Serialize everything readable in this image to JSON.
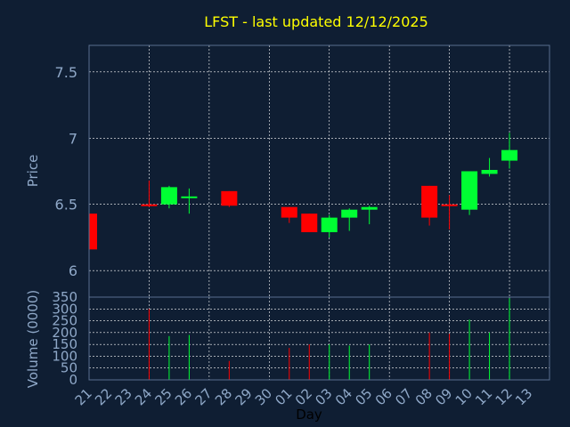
{
  "chart_data": {
    "type": "candlestick",
    "title": "LFST - last updated 12/12/2025",
    "xlabel": "Day",
    "price_panel": {
      "ylabel": "Price",
      "ylim": [
        5.8,
        7.7
      ],
      "yticks": [
        6,
        6.5,
        7,
        7.5
      ],
      "grid": true
    },
    "volume_panel": {
      "ylabel": "Volume (0000)",
      "ylim": [
        0,
        350
      ],
      "yticks": [
        0,
        50,
        100,
        150,
        200,
        250,
        300,
        350
      ],
      "grid": true
    },
    "x_tick_labels": [
      "21",
      "22",
      "23",
      "24",
      "25",
      "26",
      "27",
      "28",
      "29",
      "30",
      "01",
      "02",
      "03",
      "04",
      "05",
      "06",
      "07",
      "08",
      "09",
      "10",
      "11",
      "12",
      "13"
    ],
    "colors": {
      "up": "#00ff33",
      "down": "#ff0000",
      "title": "#ffff00",
      "grid": "#ffffff",
      "axis_text": "#8fa8c8"
    },
    "candles": [
      {
        "x": 0,
        "open": 6.43,
        "high": 6.43,
        "low": 6.16,
        "close": 6.16,
        "volume": 0
      },
      {
        "x": 3,
        "open": 6.5,
        "high": 6.68,
        "low": 6.48,
        "close": 6.49,
        "volume": 300
      },
      {
        "x": 4,
        "open": 6.5,
        "high": 6.64,
        "low": 6.47,
        "close": 6.63,
        "volume": 185
      },
      {
        "x": 5,
        "open": 6.55,
        "high": 6.62,
        "low": 6.43,
        "close": 6.56,
        "volume": 190
      },
      {
        "x": 7,
        "open": 6.6,
        "high": 6.6,
        "low": 6.48,
        "close": 6.49,
        "volume": 80
      },
      {
        "x": 10,
        "open": 6.48,
        "high": 6.48,
        "low": 6.36,
        "close": 6.4,
        "volume": 135
      },
      {
        "x": 11,
        "open": 6.43,
        "high": 6.43,
        "low": 6.29,
        "close": 6.29,
        "volume": 150
      },
      {
        "x": 12,
        "open": 6.29,
        "high": 6.42,
        "low": 6.25,
        "close": 6.4,
        "volume": 150
      },
      {
        "x": 13,
        "open": 6.4,
        "high": 6.47,
        "low": 6.3,
        "close": 6.46,
        "volume": 145
      },
      {
        "x": 14,
        "open": 6.46,
        "high": 6.49,
        "low": 6.35,
        "close": 6.48,
        "volume": 150
      },
      {
        "x": 17,
        "open": 6.64,
        "high": 6.64,
        "low": 6.34,
        "close": 6.4,
        "volume": 200
      },
      {
        "x": 18,
        "open": 6.5,
        "high": 6.57,
        "low": 6.31,
        "close": 6.49,
        "volume": 195
      },
      {
        "x": 19,
        "open": 6.46,
        "high": 6.75,
        "low": 6.42,
        "close": 6.75,
        "volume": 255
      },
      {
        "x": 20,
        "open": 6.73,
        "high": 6.85,
        "low": 6.71,
        "close": 6.76,
        "volume": 200
      },
      {
        "x": 21,
        "open": 6.83,
        "high": 7.04,
        "low": 6.77,
        "close": 6.91,
        "volume": 345
      }
    ]
  }
}
